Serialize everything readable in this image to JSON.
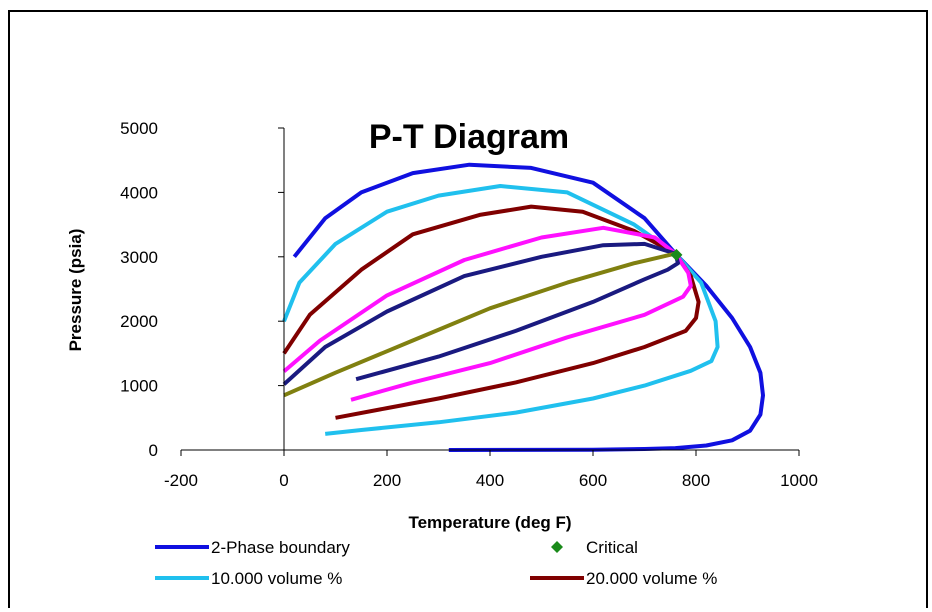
{
  "chart_data": {
    "type": "line",
    "title": "P-T Diagram",
    "xlabel": "Temperature (deg F)",
    "ylabel": "Pressure (psia)",
    "xlim": [
      -200,
      1000
    ],
    "ylim": [
      0,
      5000
    ],
    "x_ticks": [
      "-200",
      "0",
      "200",
      "400",
      "600",
      "800",
      "1000"
    ],
    "y_ticks": [
      "0",
      "1000",
      "2000",
      "3000",
      "4000",
      "5000"
    ],
    "grid": false,
    "legend_position": "bottom",
    "legend": [
      {
        "label": "2-Phase boundary",
        "color": "#1010e0",
        "marker": "line"
      },
      {
        "label": "Critical",
        "color": "#1a8a1a",
        "marker": "diamond"
      },
      {
        "label": "10.000 volume %",
        "color": "#20c0ee",
        "marker": "line"
      },
      {
        "label": "20.000 volume %",
        "color": "#800000",
        "marker": "line"
      }
    ],
    "series": [
      {
        "name": "2-Phase boundary",
        "color": "#1010e0",
        "x": [
          20,
          80,
          150,
          250,
          360,
          480,
          600,
          700,
          760,
          820,
          870,
          905,
          925,
          930,
          925,
          905,
          870,
          820,
          760,
          700,
          600,
          450,
          320
        ],
        "y": [
          3000,
          3600,
          4000,
          4300,
          4430,
          4380,
          4150,
          3600,
          3050,
          2550,
          2050,
          1600,
          1200,
          850,
          550,
          300,
          150,
          70,
          30,
          15,
          5,
          2,
          0
        ]
      },
      {
        "series_note": "",
        "color": "#20c0ee",
        "x": [
          0,
          30,
          100,
          200,
          300,
          420,
          550,
          680,
          760,
          810,
          838,
          842,
          830,
          790,
          700,
          600,
          450,
          300,
          150,
          80
        ],
        "y": [
          2000,
          2600,
          3200,
          3700,
          3950,
          4100,
          4000,
          3500,
          3050,
          2600,
          2000,
          1600,
          1380,
          1230,
          1000,
          800,
          580,
          430,
          310,
          250
        ]
      },
      {
        "color": "#800000",
        "x": [
          0,
          50,
          150,
          250,
          380,
          480,
          580,
          680,
          760,
          790,
          805,
          800,
          780,
          700,
          600,
          450,
          300,
          200,
          100
        ],
        "y": [
          1500,
          2100,
          2800,
          3350,
          3650,
          3780,
          3700,
          3400,
          3050,
          2700,
          2300,
          2050,
          1850,
          1600,
          1350,
          1050,
          800,
          650,
          500
        ]
      },
      {
        "color": "#ff10ff",
        "x": [
          0,
          70,
          200,
          350,
          500,
          620,
          720,
          760,
          785,
          790,
          775,
          700,
          550,
          400,
          250,
          130
        ],
        "y": [
          1220,
          1700,
          2400,
          2950,
          3300,
          3450,
          3300,
          3050,
          2750,
          2550,
          2380,
          2100,
          1750,
          1350,
          1050,
          780
        ]
      },
      {
        "color": "#1a1a80",
        "x": [
          0,
          80,
          200,
          350,
          500,
          620,
          700,
          760,
          765,
          745,
          700,
          600,
          450,
          300,
          140
        ],
        "y": [
          1020,
          1600,
          2150,
          2700,
          3000,
          3180,
          3200,
          3050,
          2900,
          2800,
          2650,
          2300,
          1850,
          1450,
          1100
        ]
      },
      {
        "color": "#808010",
        "x": [
          0,
          100,
          250,
          400,
          550,
          680,
          760
        ],
        "y": [
          850,
          1200,
          1700,
          2200,
          2600,
          2900,
          3050
        ]
      }
    ],
    "critical_point": {
      "x": 762,
      "y": 3030,
      "color": "#1a8a1a"
    }
  }
}
